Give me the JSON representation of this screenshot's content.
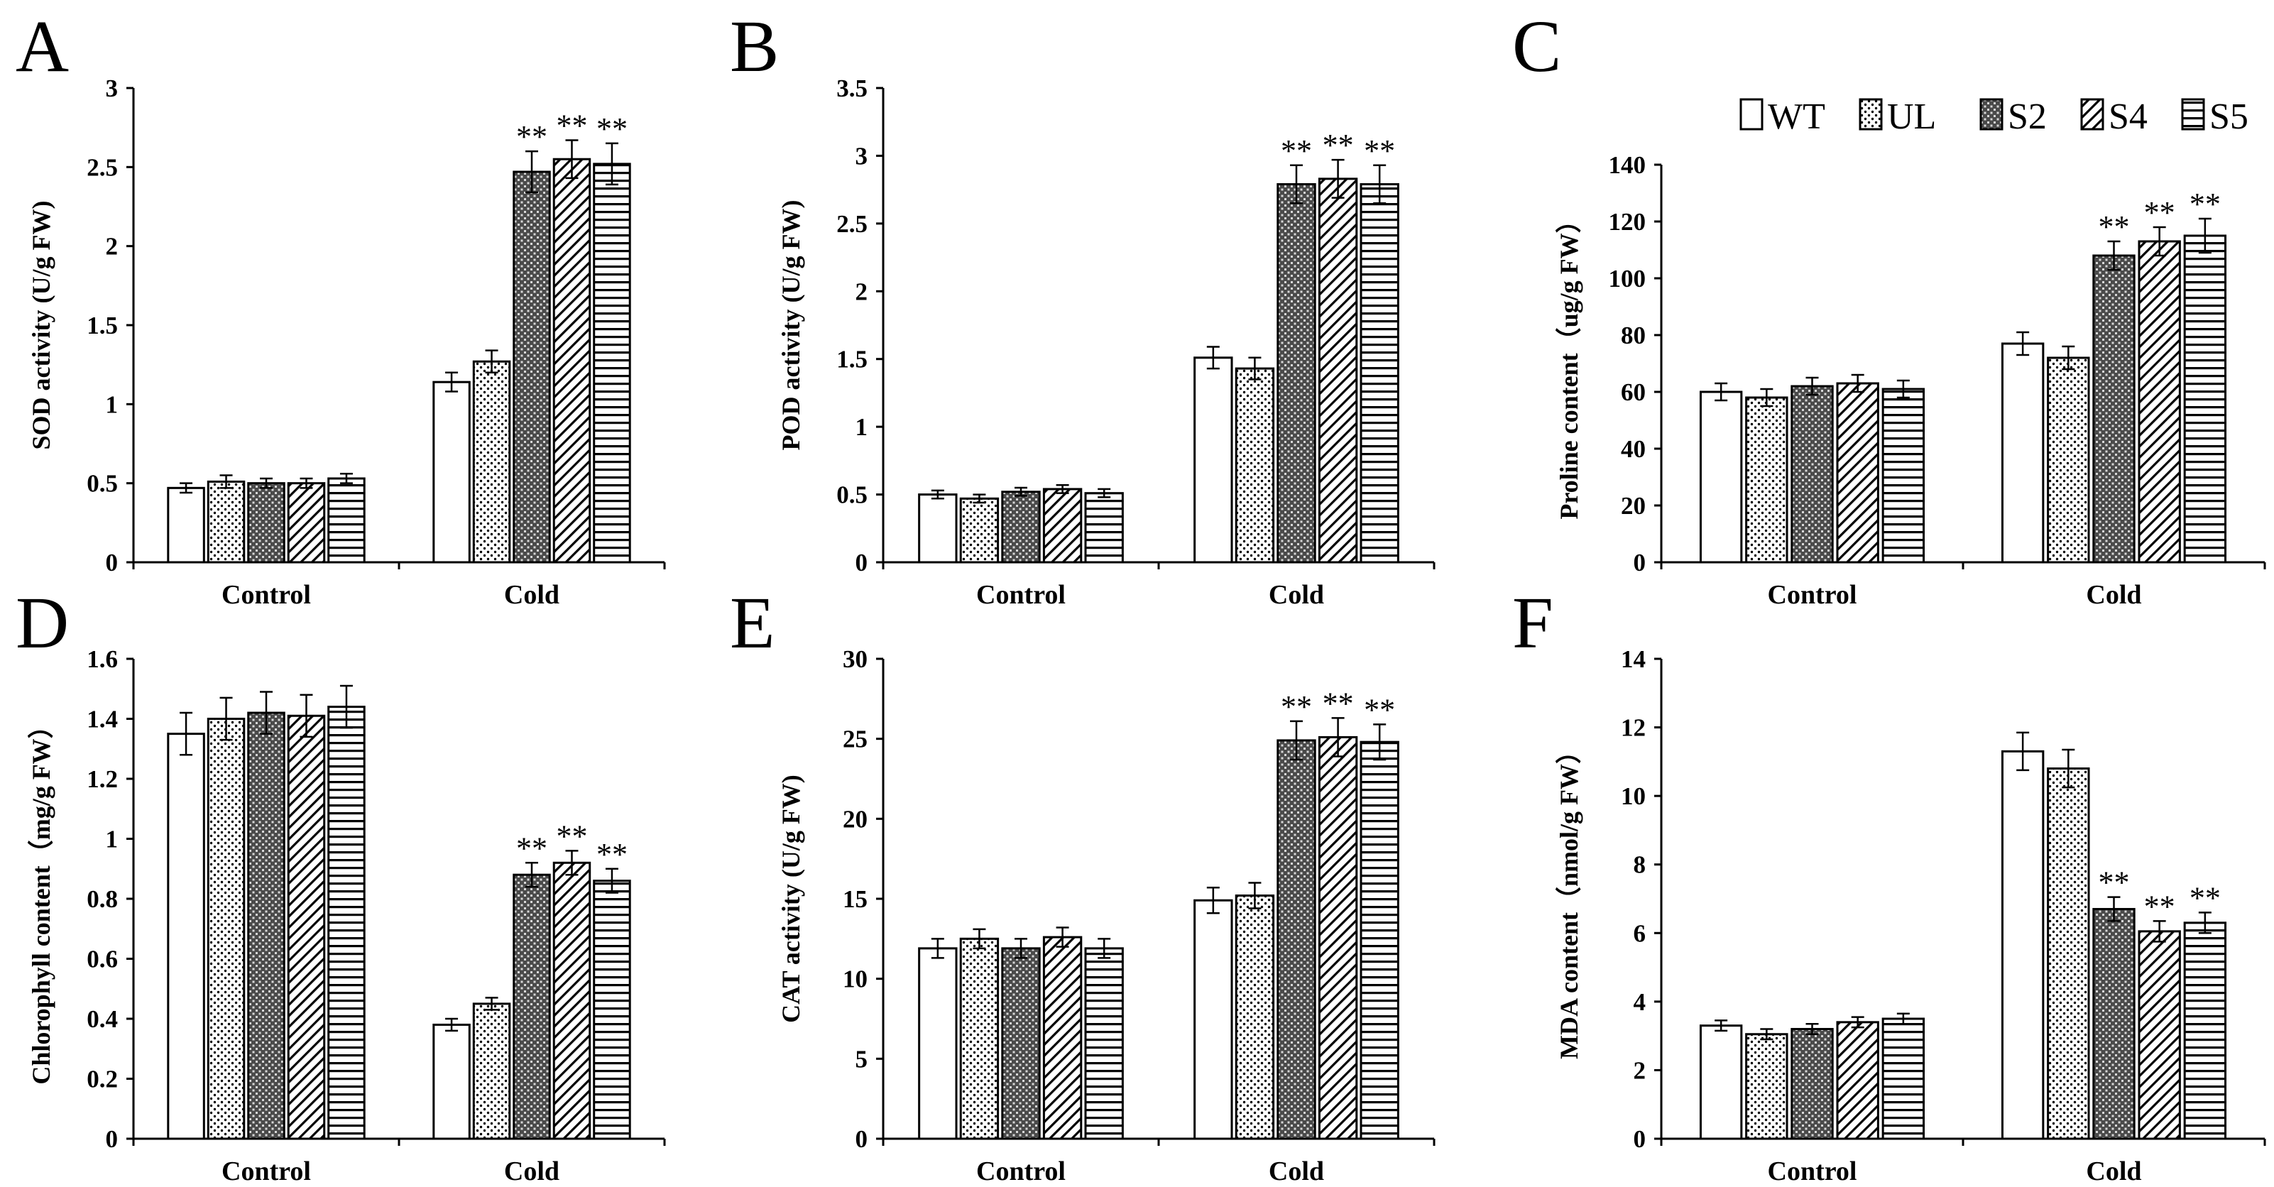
{
  "figure_labels": [
    "A",
    "B",
    "C",
    "D",
    "E",
    "F"
  ],
  "legend": [
    "WT",
    "UL",
    "S2",
    "S4",
    "S5"
  ],
  "significance_marker": "**",
  "chart_data": [
    {
      "panel": "A",
      "type": "bar",
      "categories": [
        "Control",
        "Cold"
      ],
      "ylabel": "SOD activity (U/g FW)",
      "ylim": [
        0,
        3
      ],
      "yticks": [
        "0",
        "0.5",
        "1",
        "1.5",
        "2",
        "2.5",
        "3"
      ],
      "series": [
        {
          "name": "WT",
          "values": [
            0.47,
            1.14
          ],
          "errors": [
            0.03,
            0.06
          ],
          "significant": [
            false,
            false
          ]
        },
        {
          "name": "UL",
          "values": [
            0.51,
            1.27
          ],
          "errors": [
            0.04,
            0.07
          ],
          "significant": [
            false,
            false
          ]
        },
        {
          "name": "S2",
          "values": [
            0.5,
            2.47
          ],
          "errors": [
            0.03,
            0.13
          ],
          "significant": [
            false,
            true
          ]
        },
        {
          "name": "S4",
          "values": [
            0.5,
            2.55
          ],
          "errors": [
            0.03,
            0.12
          ],
          "significant": [
            false,
            true
          ]
        },
        {
          "name": "S5",
          "values": [
            0.53,
            2.52
          ],
          "errors": [
            0.03,
            0.13
          ],
          "significant": [
            false,
            true
          ]
        }
      ]
    },
    {
      "panel": "B",
      "type": "bar",
      "categories": [
        "Control",
        "Cold"
      ],
      "ylabel": "POD activity (U/g FW)",
      "ylim": [
        0,
        3.5
      ],
      "yticks": [
        "0",
        "0.5",
        "1",
        "1.5",
        "2",
        "2.5",
        "3",
        "3.5"
      ],
      "series": [
        {
          "name": "WT",
          "values": [
            0.5,
            1.51
          ],
          "errors": [
            0.03,
            0.08
          ],
          "significant": [
            false,
            false
          ]
        },
        {
          "name": "UL",
          "values": [
            0.47,
            1.43
          ],
          "errors": [
            0.03,
            0.08
          ],
          "significant": [
            false,
            false
          ]
        },
        {
          "name": "S2",
          "values": [
            0.52,
            2.79
          ],
          "errors": [
            0.03,
            0.14
          ],
          "significant": [
            false,
            true
          ]
        },
        {
          "name": "S4",
          "values": [
            0.54,
            2.83
          ],
          "errors": [
            0.03,
            0.14
          ],
          "significant": [
            false,
            true
          ]
        },
        {
          "name": "S5",
          "values": [
            0.51,
            2.79
          ],
          "errors": [
            0.03,
            0.14
          ],
          "significant": [
            false,
            true
          ]
        }
      ]
    },
    {
      "panel": "C",
      "type": "bar",
      "categories": [
        "Control",
        "Cold"
      ],
      "ylabel": "Proline content（ug/g FW）",
      "ylim": [
        0,
        140
      ],
      "yticks": [
        "0",
        "20",
        "40",
        "60",
        "80",
        "100",
        "120",
        "140"
      ],
      "series": [
        {
          "name": "WT",
          "values": [
            60,
            77
          ],
          "errors": [
            3,
            4
          ],
          "significant": [
            false,
            false
          ]
        },
        {
          "name": "UL",
          "values": [
            58,
            72
          ],
          "errors": [
            3,
            4
          ],
          "significant": [
            false,
            false
          ]
        },
        {
          "name": "S2",
          "values": [
            62,
            108
          ],
          "errors": [
            3,
            5
          ],
          "significant": [
            false,
            true
          ]
        },
        {
          "name": "S4",
          "values": [
            63,
            113
          ],
          "errors": [
            3,
            5
          ],
          "significant": [
            false,
            true
          ]
        },
        {
          "name": "S5",
          "values": [
            61,
            115
          ],
          "errors": [
            3,
            6
          ],
          "significant": [
            false,
            true
          ]
        }
      ]
    },
    {
      "panel": "D",
      "type": "bar",
      "categories": [
        "Control",
        "Cold"
      ],
      "ylabel": "Chlorophyll content（mg/g FW）",
      "ylim": [
        0,
        1.6
      ],
      "yticks": [
        "0",
        "0.2",
        "0.4",
        "0.6",
        "0.8",
        "1",
        "1.2",
        "1.4",
        "1.6"
      ],
      "series": [
        {
          "name": "WT",
          "values": [
            1.35,
            0.38
          ],
          "errors": [
            0.07,
            0.02
          ],
          "significant": [
            false,
            false
          ]
        },
        {
          "name": "UL",
          "values": [
            1.4,
            0.45
          ],
          "errors": [
            0.07,
            0.02
          ],
          "significant": [
            false,
            false
          ]
        },
        {
          "name": "S2",
          "values": [
            1.42,
            0.88
          ],
          "errors": [
            0.07,
            0.04
          ],
          "significant": [
            false,
            true
          ]
        },
        {
          "name": "S4",
          "values": [
            1.41,
            0.92
          ],
          "errors": [
            0.07,
            0.04
          ],
          "significant": [
            false,
            true
          ]
        },
        {
          "name": "S5",
          "values": [
            1.44,
            0.86
          ],
          "errors": [
            0.07,
            0.04
          ],
          "significant": [
            false,
            true
          ]
        }
      ]
    },
    {
      "panel": "E",
      "type": "bar",
      "categories": [
        "Control",
        "Cold"
      ],
      "ylabel": "CAT activity (U/g FW)",
      "ylim": [
        0,
        30
      ],
      "yticks": [
        "0",
        "5",
        "10",
        "15",
        "20",
        "25",
        "30"
      ],
      "series": [
        {
          "name": "WT",
          "values": [
            11.9,
            14.9
          ],
          "errors": [
            0.6,
            0.8
          ],
          "significant": [
            false,
            false
          ]
        },
        {
          "name": "UL",
          "values": [
            12.5,
            15.2
          ],
          "errors": [
            0.6,
            0.8
          ],
          "significant": [
            false,
            false
          ]
        },
        {
          "name": "S2",
          "values": [
            11.9,
            24.9
          ],
          "errors": [
            0.6,
            1.2
          ],
          "significant": [
            false,
            true
          ]
        },
        {
          "name": "S4",
          "values": [
            12.6,
            25.1
          ],
          "errors": [
            0.6,
            1.2
          ],
          "significant": [
            false,
            true
          ]
        },
        {
          "name": "S5",
          "values": [
            11.9,
            24.8
          ],
          "errors": [
            0.6,
            1.1
          ],
          "significant": [
            false,
            true
          ]
        }
      ]
    },
    {
      "panel": "F",
      "type": "bar",
      "categories": [
        "Control",
        "Cold"
      ],
      "ylabel": "MDA content（nmol/g FW）",
      "ylim": [
        0,
        14
      ],
      "yticks": [
        "0",
        "2",
        "4",
        "6",
        "8",
        "10",
        "12",
        "14"
      ],
      "series": [
        {
          "name": "WT",
          "values": [
            3.3,
            11.3
          ],
          "errors": [
            0.15,
            0.55
          ],
          "significant": [
            false,
            false
          ]
        },
        {
          "name": "UL",
          "values": [
            3.05,
            10.8
          ],
          "errors": [
            0.15,
            0.55
          ],
          "significant": [
            false,
            false
          ]
        },
        {
          "name": "S2",
          "values": [
            3.2,
            6.7
          ],
          "errors": [
            0.15,
            0.35
          ],
          "significant": [
            false,
            true
          ]
        },
        {
          "name": "S4",
          "values": [
            3.4,
            6.05
          ],
          "errors": [
            0.15,
            0.3
          ],
          "significant": [
            false,
            true
          ]
        },
        {
          "name": "S5",
          "values": [
            3.5,
            6.3
          ],
          "errors": [
            0.15,
            0.3
          ],
          "significant": [
            false,
            true
          ]
        }
      ]
    }
  ]
}
